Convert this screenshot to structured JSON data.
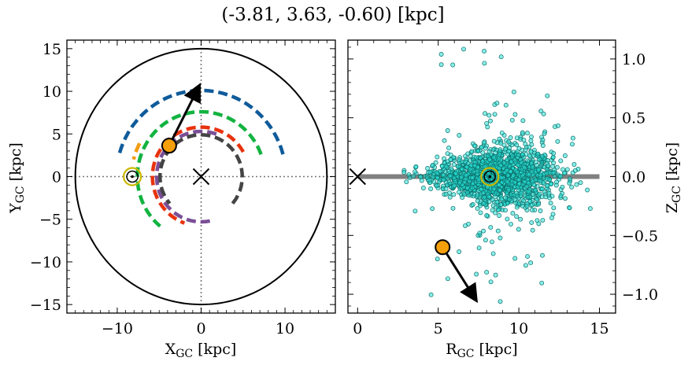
{
  "chart_data": [
    {
      "type": "scatter",
      "title": "(-3.81, 3.63, -0.60) [kpc]",
      "xlabel": "X_GC [kpc]",
      "ylabel": "Y_GC [kpc]",
      "xlim": [
        -16,
        16
      ],
      "ylim": [
        -16,
        16
      ],
      "xticks": [
        -10,
        0,
        10
      ],
      "yticks": [
        15,
        10,
        5,
        0,
        -5,
        -10,
        -15
      ],
      "tick_labels_x": [
        "−10",
        "0",
        "10"
      ],
      "tick_labels_y": [
        "15",
        "10",
        "5",
        "0",
        "−5",
        "−10",
        "−15"
      ],
      "boundary_circle_radius": 15,
      "galactic_center": [
        0,
        0
      ],
      "sun": [
        -8.2,
        0
      ],
      "object": [
        -3.81,
        3.63
      ],
      "velocity_arrow_tip": [
        -0.3,
        10.5
      ],
      "spiral_arms": [
        {
          "color": "#0f5b9a",
          "radius": 10.1,
          "theta_deg": [
            15,
            165
          ]
        },
        {
          "color": "#12b340",
          "radius": 7.6,
          "theta_deg": [
            20,
            230
          ]
        },
        {
          "color": "#e8320e",
          "radius": 5.8,
          "theta_deg": [
            30,
            250
          ]
        },
        {
          "color": "#7a4f96",
          "radius": 5.3,
          "theta_deg": [
            70,
            282
          ]
        },
        {
          "color": "#444444",
          "radius": 4.9,
          "theta_deg": [
            -40,
            220
          ]
        },
        {
          "color": "#f39c12",
          "radius": 8.3,
          "theta_deg": [
            152,
            166
          ]
        }
      ]
    },
    {
      "type": "scatter",
      "xlabel": "R_GC [kpc]",
      "ylabel": "Z_GC [kpc]",
      "xlim": [
        -0.6,
        16.0
      ],
      "ylim": [
        -1.16,
        1.16
      ],
      "xticks": [
        0,
        5,
        10,
        15
      ],
      "yticks": [
        1.0,
        0.5,
        0.0,
        -0.5,
        -1.0
      ],
      "tick_labels_x": [
        "0",
        "5",
        "10",
        "15"
      ],
      "tick_labels_y": [
        "1.0",
        "0.5",
        "0.0",
        "−0.5",
        "−1.0"
      ],
      "disk_line": {
        "x": [
          0,
          15
        ],
        "y": 0,
        "color": "#808080"
      },
      "galactic_center": [
        0,
        0
      ],
      "sun": [
        8.2,
        0
      ],
      "object": [
        5.27,
        -0.6
      ],
      "velocity_arrow_tip": [
        7.3,
        -1.04
      ],
      "stars": {
        "color": "#27e0d5",
        "count_drawn": 1700,
        "r_center": 8.5,
        "notes_spread": "cluster concentrated around R 5-12, |Z|<0.3 with outliers to |Z|~1.1"
      }
    }
  ],
  "colors": {
    "orange_marker": "#f59f0a",
    "sun_ring": "#c9b800",
    "arrow": "#000000",
    "star_fill": "#27e0d5",
    "star_edge": "#0d6f6a"
  }
}
